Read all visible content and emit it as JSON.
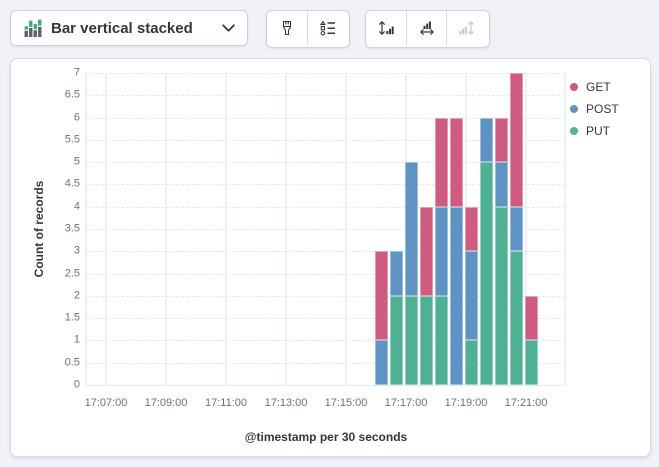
{
  "toolbar": {
    "chart_type": {
      "label": "Bar vertical stacked",
      "icon": "bar-vertical-stacked-icon",
      "chevron_icon": "chevron-down-icon"
    },
    "style_group": [
      {
        "name": "visual-options",
        "icon": "paintbrush-icon",
        "disabled": false
      },
      {
        "name": "legend-settings",
        "icon": "legend-values-icon",
        "disabled": false
      }
    ],
    "axis_group": [
      {
        "name": "left-axis",
        "icon": "left-axis-icon",
        "disabled": false
      },
      {
        "name": "bottom-axis",
        "icon": "bottom-axis-icon",
        "disabled": false
      },
      {
        "name": "right-axis",
        "icon": "right-axis-icon",
        "disabled": true
      }
    ]
  },
  "chart_data": {
    "type": "bar",
    "stacked": true,
    "ylabel": "Count of records",
    "xlabel": "@timestamp per 30 seconds",
    "ylim": [
      0,
      7
    ],
    "grid": {
      "horizontal": "dashed",
      "vertical": "solid"
    },
    "legend_position": "right",
    "y_ticks": [
      "0",
      "0.5",
      "1",
      "1.5",
      "2",
      "2.5",
      "3",
      "3.5",
      "4",
      "4.5",
      "5",
      "5.5",
      "6",
      "6.5",
      "7"
    ],
    "x_ticks": [
      "17:07:00",
      "17:09:00",
      "17:11:00",
      "17:13:00",
      "17:15:00",
      "17:17:00",
      "17:19:00",
      "17:21:00"
    ],
    "x": [
      "17:16:00",
      "17:16:30",
      "17:17:00",
      "17:17:30",
      "17:18:00",
      "17:18:30",
      "17:19:00",
      "17:19:30",
      "17:20:00",
      "17:20:30",
      "17:21:00"
    ],
    "stack_order_bottom_to_top": [
      "PUT",
      "POST",
      "GET"
    ],
    "series": [
      {
        "name": "GET",
        "color": "#ce5b80",
        "values": [
          2,
          0,
          0,
          2,
          2,
          2,
          1,
          0,
          1,
          3,
          1
        ]
      },
      {
        "name": "POST",
        "color": "#5e93c4",
        "values": [
          1,
          1,
          3,
          0,
          2,
          4,
          2,
          1,
          1,
          1,
          0
        ]
      },
      {
        "name": "PUT",
        "color": "#4fb093",
        "values": [
          0,
          2,
          2,
          2,
          2,
          0,
          1,
          5,
          4,
          3,
          1
        ]
      }
    ]
  },
  "legend": {
    "items": [
      {
        "label": "GET",
        "color": "#d0567f"
      },
      {
        "label": "POST",
        "color": "#6092c0"
      },
      {
        "label": "PUT",
        "color": "#54b399"
      }
    ]
  },
  "colors": {
    "background": "#f0f2f7",
    "panel_border": "#d3dae6",
    "icon_green": "#45a789",
    "icon_gray": "#5a6271",
    "tick_text": "#6a7180",
    "text": "#343741"
  }
}
